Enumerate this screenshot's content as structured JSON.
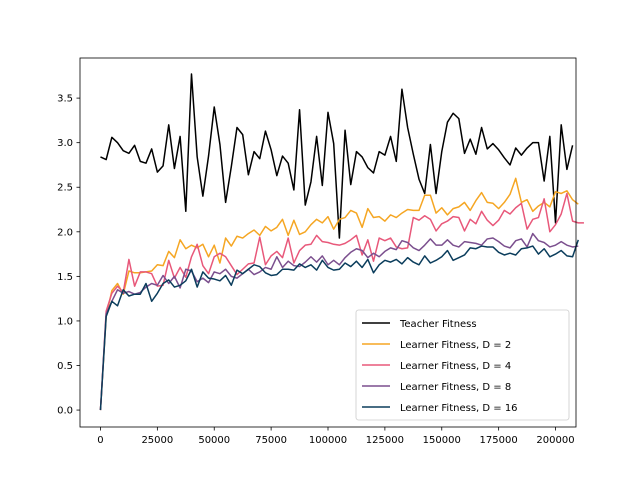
{
  "chart_data": {
    "type": "line",
    "title": "",
    "xlabel": "",
    "ylabel": "",
    "xlim": [
      -9000,
      209000
    ],
    "ylim": [
      -0.19,
      3.95
    ],
    "xticks": [
      0,
      25000,
      50000,
      75000,
      100000,
      125000,
      150000,
      175000,
      200000
    ],
    "xtick_labels": [
      "0",
      "25000",
      "50000",
      "75000",
      "100000",
      "125000",
      "150000",
      "175000",
      "200000"
    ],
    "yticks": [
      0.0,
      0.5,
      1.0,
      1.5,
      2.0,
      2.5,
      3.0,
      3.5
    ],
    "ytick_labels": [
      "0.0",
      "0.5",
      "1.0",
      "1.5",
      "2.0",
      "2.5",
      "3.0",
      "3.5"
    ],
    "grid": false,
    "legend_position": "lower-right",
    "x_start": 0,
    "x_step": 2500,
    "series": [
      {
        "name": "Teacher Fitness",
        "color": "#000000",
        "values": [
          2.84,
          2.81,
          3.06,
          3.0,
          2.91,
          2.88,
          2.97,
          2.79,
          2.77,
          2.93,
          2.67,
          2.74,
          3.2,
          2.71,
          3.07,
          2.23,
          3.77,
          2.84,
          2.4,
          2.85,
          3.4,
          2.98,
          2.33,
          2.73,
          3.17,
          3.09,
          2.64,
          2.9,
          2.82,
          3.13,
          2.92,
          2.63,
          2.85,
          2.77,
          2.47,
          3.37,
          2.3,
          2.56,
          3.07,
          2.52,
          3.34,
          2.99,
          1.93,
          3.14,
          2.53,
          2.9,
          2.84,
          2.72,
          2.66,
          2.9,
          2.86,
          3.07,
          2.79,
          3.6,
          3.17,
          2.87,
          2.59,
          2.43,
          2.98,
          2.43,
          2.9,
          3.23,
          3.33,
          3.27,
          2.88,
          3.04,
          2.87,
          3.17,
          2.93,
          2.99,
          2.92,
          2.83,
          2.75,
          2.94,
          2.86,
          2.94,
          3.0,
          3.0,
          2.57,
          3.07,
          2.1,
          3.2,
          2.7,
          2.97
        ]
      },
      {
        "name": "Learner Fitness, D = 2",
        "color": "#f5a623",
        "values": [
          0.0,
          1.05,
          1.34,
          1.42,
          1.3,
          1.56,
          1.54,
          1.54,
          1.55,
          1.56,
          1.63,
          1.62,
          1.78,
          1.71,
          1.91,
          1.81,
          1.85,
          1.82,
          1.86,
          1.72,
          1.85,
          1.65,
          1.93,
          1.84,
          1.95,
          1.93,
          1.98,
          2.02,
          1.96,
          2.06,
          2.01,
          2.05,
          2.14,
          1.96,
          2.13,
          1.97,
          2.0,
          2.08,
          2.14,
          2.1,
          2.17,
          2.03,
          2.14,
          2.16,
          2.24,
          2.21,
          2.05,
          2.26,
          2.16,
          2.17,
          2.12,
          2.19,
          2.16,
          2.21,
          2.25,
          2.24,
          2.24,
          2.41,
          2.41,
          2.21,
          2.27,
          2.19,
          2.26,
          2.28,
          2.33,
          2.24,
          2.35,
          2.44,
          2.33,
          2.32,
          2.26,
          2.33,
          2.42,
          2.6,
          2.33,
          2.36,
          2.23,
          2.29,
          2.33,
          2.28,
          2.45,
          2.43,
          2.46,
          2.36,
          2.31
        ]
      },
      {
        "name": "Learner Fitness, D = 4",
        "color": "#e8587a",
        "values": [
          0.0,
          1.11,
          1.31,
          1.39,
          1.32,
          1.69,
          1.39,
          1.55,
          1.55,
          1.53,
          1.39,
          1.4,
          1.68,
          1.48,
          1.6,
          1.49,
          1.72,
          1.86,
          1.62,
          1.53,
          1.72,
          1.76,
          1.72,
          1.62,
          1.52,
          1.58,
          1.64,
          1.65,
          1.94,
          1.63,
          1.73,
          1.78,
          1.71,
          1.93,
          1.65,
          1.79,
          1.85,
          1.86,
          1.96,
          1.89,
          1.88,
          1.86,
          1.85,
          1.87,
          1.91,
          1.96,
          1.74,
          1.91,
          1.67,
          1.93,
          1.9,
          1.93,
          1.83,
          1.81,
          1.82,
          2.16,
          2.13,
          2.18,
          2.14,
          2.01,
          2.09,
          2.12,
          2.17,
          2.16,
          2.01,
          2.14,
          2.09,
          2.23,
          2.13,
          2.07,
          2.13,
          2.24,
          2.2,
          2.27,
          2.32,
          2.03,
          2.14,
          2.16,
          2.37,
          2.0,
          2.08,
          2.2,
          2.43,
          2.12,
          2.1,
          2.1
        ]
      },
      {
        "name": "Learner Fitness, D = 8",
        "color": "#7b4f8e",
        "values": [
          0.0,
          1.08,
          1.22,
          1.35,
          1.31,
          1.33,
          1.3,
          1.32,
          1.38,
          1.42,
          1.4,
          1.51,
          1.42,
          1.5,
          1.37,
          1.58,
          1.56,
          1.44,
          1.48,
          1.43,
          1.55,
          1.53,
          1.58,
          1.5,
          1.48,
          1.53,
          1.58,
          1.52,
          1.55,
          1.6,
          1.58,
          1.72,
          1.6,
          1.67,
          1.62,
          1.61,
          1.66,
          1.72,
          1.66,
          1.73,
          1.63,
          1.68,
          1.63,
          1.71,
          1.77,
          1.81,
          1.79,
          1.71,
          1.76,
          1.72,
          1.78,
          1.82,
          1.8,
          1.9,
          1.88,
          1.82,
          1.79,
          1.85,
          1.92,
          1.85,
          1.85,
          1.91,
          1.85,
          1.83,
          1.89,
          1.88,
          1.87,
          1.85,
          1.92,
          1.93,
          1.89,
          1.84,
          1.82,
          1.9,
          1.92,
          1.83,
          1.98,
          1.9,
          1.88,
          1.83,
          1.85,
          1.89,
          1.85,
          1.83,
          1.84
        ]
      },
      {
        "name": "Learner Fitness, D = 16",
        "color": "#0b3d5c",
        "values": [
          0.0,
          1.05,
          1.22,
          1.17,
          1.35,
          1.28,
          1.3,
          1.3,
          1.42,
          1.22,
          1.31,
          1.42,
          1.46,
          1.38,
          1.4,
          1.45,
          1.58,
          1.38,
          1.55,
          1.48,
          1.47,
          1.45,
          1.51,
          1.4,
          1.57,
          1.53,
          1.58,
          1.63,
          1.61,
          1.54,
          1.51,
          1.52,
          1.58,
          1.58,
          1.57,
          1.64,
          1.6,
          1.63,
          1.57,
          1.68,
          1.6,
          1.57,
          1.58,
          1.65,
          1.61,
          1.67,
          1.6,
          1.69,
          1.54,
          1.63,
          1.68,
          1.66,
          1.69,
          1.64,
          1.71,
          1.66,
          1.63,
          1.73,
          1.65,
          1.68,
          1.72,
          1.79,
          1.68,
          1.71,
          1.74,
          1.82,
          1.81,
          1.84,
          1.83,
          1.83,
          1.77,
          1.74,
          1.76,
          1.74,
          1.81,
          1.82,
          1.84,
          1.75,
          1.81,
          1.72,
          1.75,
          1.79,
          1.73,
          1.72,
          1.91
        ]
      }
    ]
  }
}
